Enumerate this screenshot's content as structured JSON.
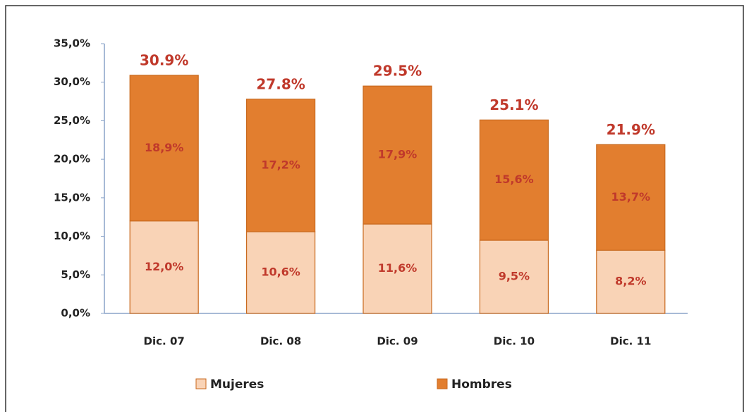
{
  "chart_data": {
    "type": "stacked_bar",
    "categories": [
      "Dic. 07",
      "Dic. 08",
      "Dic. 09",
      "Dic. 10",
      "Dic. 11"
    ],
    "series": [
      {
        "name": "Mujeres",
        "color": "#f9d3b6",
        "values": [
          12.0,
          10.6,
          11.6,
          9.5,
          8.2
        ],
        "value_labels": [
          "12,0%",
          "10,6%",
          "11,6%",
          "9,5%",
          "8,2%"
        ]
      },
      {
        "name": "Hombres",
        "color": "#e27e2f",
        "values": [
          18.9,
          17.2,
          17.9,
          15.6,
          13.7
        ],
        "value_labels": [
          "18,9%",
          "17,2%",
          "17,9%",
          "15,6%",
          "13,7%"
        ]
      }
    ],
    "totals": [
      30.9,
      27.8,
      29.5,
      25.1,
      21.9
    ],
    "total_labels": [
      "30.9%",
      "27.8%",
      "29.5%",
      "25.1%",
      "21.9%"
    ],
    "ylim": [
      0,
      35
    ],
    "yticks": [
      {
        "value": 0,
        "label": "0,0%"
      },
      {
        "value": 5,
        "label": "5,0%"
      },
      {
        "value": 10,
        "label": "10,0%"
      },
      {
        "value": 15,
        "label": "15,0%"
      },
      {
        "value": 20,
        "label": "20,0%"
      },
      {
        "value": 25,
        "label": "25,0%"
      },
      {
        "value": 30,
        "label": "30,0%"
      },
      {
        "value": 35,
        "label": "35,0%"
      }
    ],
    "legend": "bottom"
  }
}
